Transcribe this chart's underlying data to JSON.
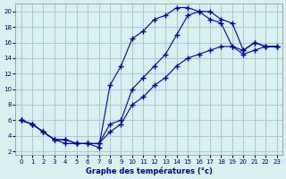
{
  "xlabel": "Graphe des températures (°c)",
  "bg_color": "#d8f0f0",
  "line_color": "#0000aa",
  "grid_color": "#aacccc",
  "yticks": [
    2,
    4,
    6,
    8,
    10,
    12,
    14,
    16,
    18,
    20
  ],
  "xticks": [
    0,
    1,
    2,
    3,
    4,
    5,
    6,
    7,
    8,
    9,
    10,
    11,
    12,
    13,
    14,
    15,
    16,
    17,
    18,
    19,
    20,
    21,
    22,
    23
  ],
  "line1_x": [
    0,
    1,
    2,
    3,
    4,
    5,
    6,
    7,
    8,
    9,
    10,
    11,
    12,
    13,
    14,
    15,
    16,
    17,
    18,
    19,
    20,
    21,
    22,
    23
  ],
  "line1_y": [
    6,
    5.5,
    4.5,
    3.5,
    3,
    3,
    3,
    2.5,
    10.5,
    13,
    16.5,
    17.5,
    19,
    19.5,
    20.5,
    20.5,
    20,
    19,
    18.5,
    15.5,
    15,
    16,
    15.5,
    15.5
  ],
  "line2_x": [
    0,
    1,
    2,
    3,
    4,
    5,
    6,
    7,
    8,
    9,
    10,
    11,
    12,
    13,
    14,
    15,
    16,
    17,
    18,
    19,
    20,
    21,
    22,
    23
  ],
  "line2_y": [
    6,
    5.5,
    4.5,
    3.5,
    3.5,
    3,
    3,
    3,
    5.5,
    6,
    10,
    11.5,
    13,
    14.5,
    17,
    19.5,
    20,
    20,
    19,
    18.5,
    15,
    16,
    15.5,
    15.5
  ],
  "line3_x": [
    0,
    1,
    2,
    3,
    4,
    5,
    6,
    7,
    8,
    9,
    10,
    11,
    12,
    13,
    14,
    15,
    16,
    17,
    18,
    19,
    20,
    21,
    22,
    23
  ],
  "line3_y": [
    6,
    5.5,
    4.5,
    3.5,
    3.5,
    3,
    3,
    3,
    4.5,
    5.5,
    8,
    9,
    10.5,
    11.5,
    13,
    14,
    14.5,
    15,
    15.5,
    15.5,
    14.5,
    15,
    15.5,
    15.5
  ]
}
